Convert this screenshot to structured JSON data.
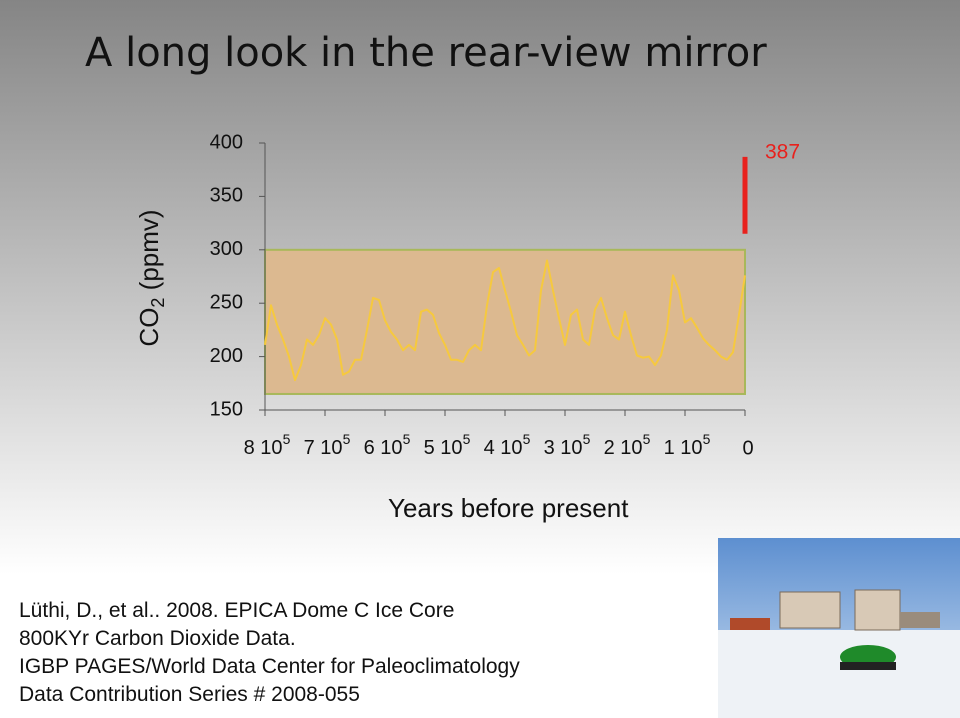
{
  "title": "A long look in the rear-view mirror",
  "chart_data": {
    "type": "line",
    "ylabel": {
      "text": "CO",
      "sub": "2",
      "rest": " (ppmv)"
    },
    "xlabel": "Years before present",
    "xlim": [
      800000,
      0
    ],
    "ylim": [
      150,
      400
    ],
    "yticks": [
      150,
      200,
      250,
      300,
      350,
      400
    ],
    "xticks": [
      {
        "value": 800000,
        "label": "8 10",
        "exponent": "5"
      },
      {
        "value": 700000,
        "label": "7 10",
        "exponent": "5"
      },
      {
        "value": 600000,
        "label": "6 10",
        "exponent": "5"
      },
      {
        "value": 500000,
        "label": "5 10",
        "exponent": "5"
      },
      {
        "value": 400000,
        "label": "4 10",
        "exponent": "5"
      },
      {
        "value": 300000,
        "label": "3 10",
        "exponent": "5"
      },
      {
        "value": 200000,
        "label": "2 10",
        "exponent": "5"
      },
      {
        "value": 100000,
        "label": "1 10",
        "exponent": "5"
      },
      0
    ],
    "band": {
      "range": [
        165,
        300
      ],
      "color": "#dcb990",
      "edge": "#a8b85a"
    },
    "series": [
      {
        "color": "#f6c93e",
        "x": [
          800000,
          790000,
          780000,
          770000,
          760000,
          750000,
          740000,
          730000,
          720000,
          710000,
          700000,
          690000,
          680000,
          670000,
          660000,
          650000,
          640000,
          630000,
          620000,
          610000,
          600000,
          590000,
          580000,
          570000,
          560000,
          550000,
          540000,
          530000,
          520000,
          510000,
          500000,
          490000,
          480000,
          470000,
          460000,
          450000,
          440000,
          430000,
          420000,
          410000,
          400000,
          390000,
          380000,
          370000,
          360000,
          350000,
          340000,
          330000,
          320000,
          310000,
          300000,
          290000,
          280000,
          270000,
          260000,
          250000,
          240000,
          230000,
          220000,
          210000,
          200000,
          190000,
          180000,
          170000,
          160000,
          150000,
          140000,
          130000,
          120000,
          110000,
          100000,
          90000,
          80000,
          70000,
          60000,
          50000,
          40000,
          30000,
          20000,
          10000,
          0
        ],
        "values": [
          211,
          248,
          230,
          216,
          200,
          178,
          192,
          216,
          211,
          220,
          236,
          230,
          216,
          183,
          186,
          197,
          197,
          225,
          255,
          253,
          234,
          223,
          216,
          206,
          211,
          206,
          242,
          244,
          239,
          222,
          211,
          197,
          197,
          195,
          206,
          211,
          206,
          248,
          279,
          283,
          262,
          242,
          220,
          211,
          201,
          206,
          262,
          290,
          262,
          236,
          211,
          239,
          244,
          216,
          211,
          244,
          255,
          236,
          220,
          216,
          242,
          220,
          201,
          199,
          200,
          192,
          201,
          225,
          276,
          262,
          232,
          236,
          227,
          217,
          211,
          206,
          200,
          197,
          204,
          239,
          276
        ]
      }
    ],
    "modern": {
      "value": 387,
      "start": 315,
      "color": "#e8211d"
    }
  },
  "citation": [
    "Lüthi, D., et al.. 2008. EPICA Dome C Ice Core",
    "800KYr Carbon Dioxide Data.",
    "IGBP PAGES/World Data Center for Paleoclimatology",
    "Data Contribution Series # 2008-055"
  ]
}
